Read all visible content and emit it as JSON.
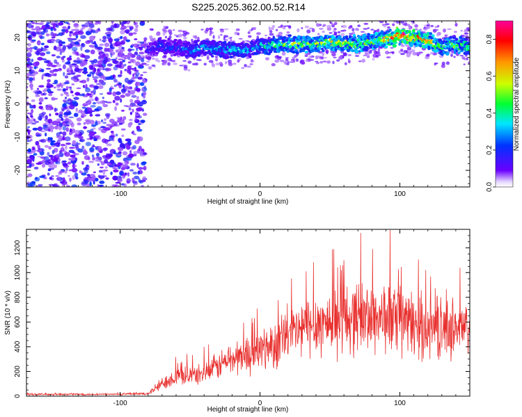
{
  "figure_title": "S225.2025.362.00.52.R14",
  "colors": {
    "line": "#e8302e",
    "axis": "#000000",
    "background": "#ffffff"
  },
  "chart_data": [
    {
      "type": "heatmap",
      "title": "S225.2025.362.00.52.R14",
      "xlabel": "Height of straight line (km)",
      "ylabel": "Frequency (Hz)",
      "xlim": [
        -167,
        150
      ],
      "ylim": [
        -25,
        25
      ],
      "xticks": [
        -100,
        0,
        100
      ],
      "yticks": [
        20,
        10,
        0,
        -10,
        -20
      ],
      "colorbar": {
        "label": "Normalized spectral amplitude",
        "range": [
          0,
          0.9
        ],
        "ticks": [
          "0.0",
          "0.2",
          "0.4",
          "0.6",
          "0.8"
        ],
        "colormap": "rainbow-white"
      },
      "noise_region": {
        "x": [
          -167,
          -82
        ],
        "y": [
          -25,
          25
        ],
        "level": 0.12
      },
      "signal_trace": {
        "x": [
          -82,
          -70,
          -60,
          -50,
          -40,
          -30,
          -20,
          -10,
          0,
          10,
          20,
          30,
          40,
          50,
          60,
          70,
          80,
          90,
          100,
          110,
          120,
          130,
          140,
          150
        ],
        "freq": [
          16,
          17.5,
          17,
          16,
          17,
          16.5,
          16.5,
          16.5,
          17,
          17.5,
          18,
          18,
          18,
          18.5,
          18,
          18,
          19,
          19.5,
          20.5,
          20,
          19,
          17,
          18,
          17
        ],
        "amplitude": [
          0.12,
          0.22,
          0.2,
          0.25,
          0.3,
          0.32,
          0.32,
          0.3,
          0.35,
          0.45,
          0.5,
          0.52,
          0.5,
          0.55,
          0.5,
          0.52,
          0.55,
          0.6,
          0.85,
          0.7,
          0.65,
          0.45,
          0.5,
          0.4
        ]
      }
    },
    {
      "type": "line",
      "xlabel": "Height of straight line (km)",
      "ylabel": "SNR (10 * v/v)",
      "xlim": [
        -167,
        150
      ],
      "ylim": [
        0,
        1350
      ],
      "xticks": [
        -100,
        0,
        100
      ],
      "yticks": [
        0,
        200,
        400,
        600,
        800,
        1000,
        1200
      ],
      "envelope": {
        "x": [
          -167,
          -100,
          -80,
          -75,
          -65,
          -55,
          -45,
          -35,
          -25,
          -15,
          -5,
          0,
          10,
          20,
          30,
          40,
          50,
          60,
          70,
          80,
          90,
          100,
          110,
          120,
          130,
          140,
          150
        ],
        "mean": [
          15,
          15,
          20,
          60,
          140,
          170,
          170,
          210,
          280,
          320,
          350,
          370,
          420,
          480,
          540,
          590,
          600,
          630,
          640,
          640,
          640,
          600,
          570,
          560,
          540,
          560,
          520
        ],
        "spread": [
          8,
          8,
          10,
          40,
          70,
          80,
          80,
          100,
          130,
          150,
          170,
          180,
          200,
          230,
          250,
          270,
          280,
          300,
          300,
          310,
          300,
          290,
          280,
          260,
          250,
          250,
          240
        ]
      },
      "peaks": [
        {
          "x": 72,
          "y": 1320
        },
        {
          "x": 93,
          "y": 1345
        },
        {
          "x": 60,
          "y": 1100
        },
        {
          "x": 143,
          "y": 1040
        },
        {
          "x": 33,
          "y": 1010
        }
      ]
    }
  ]
}
